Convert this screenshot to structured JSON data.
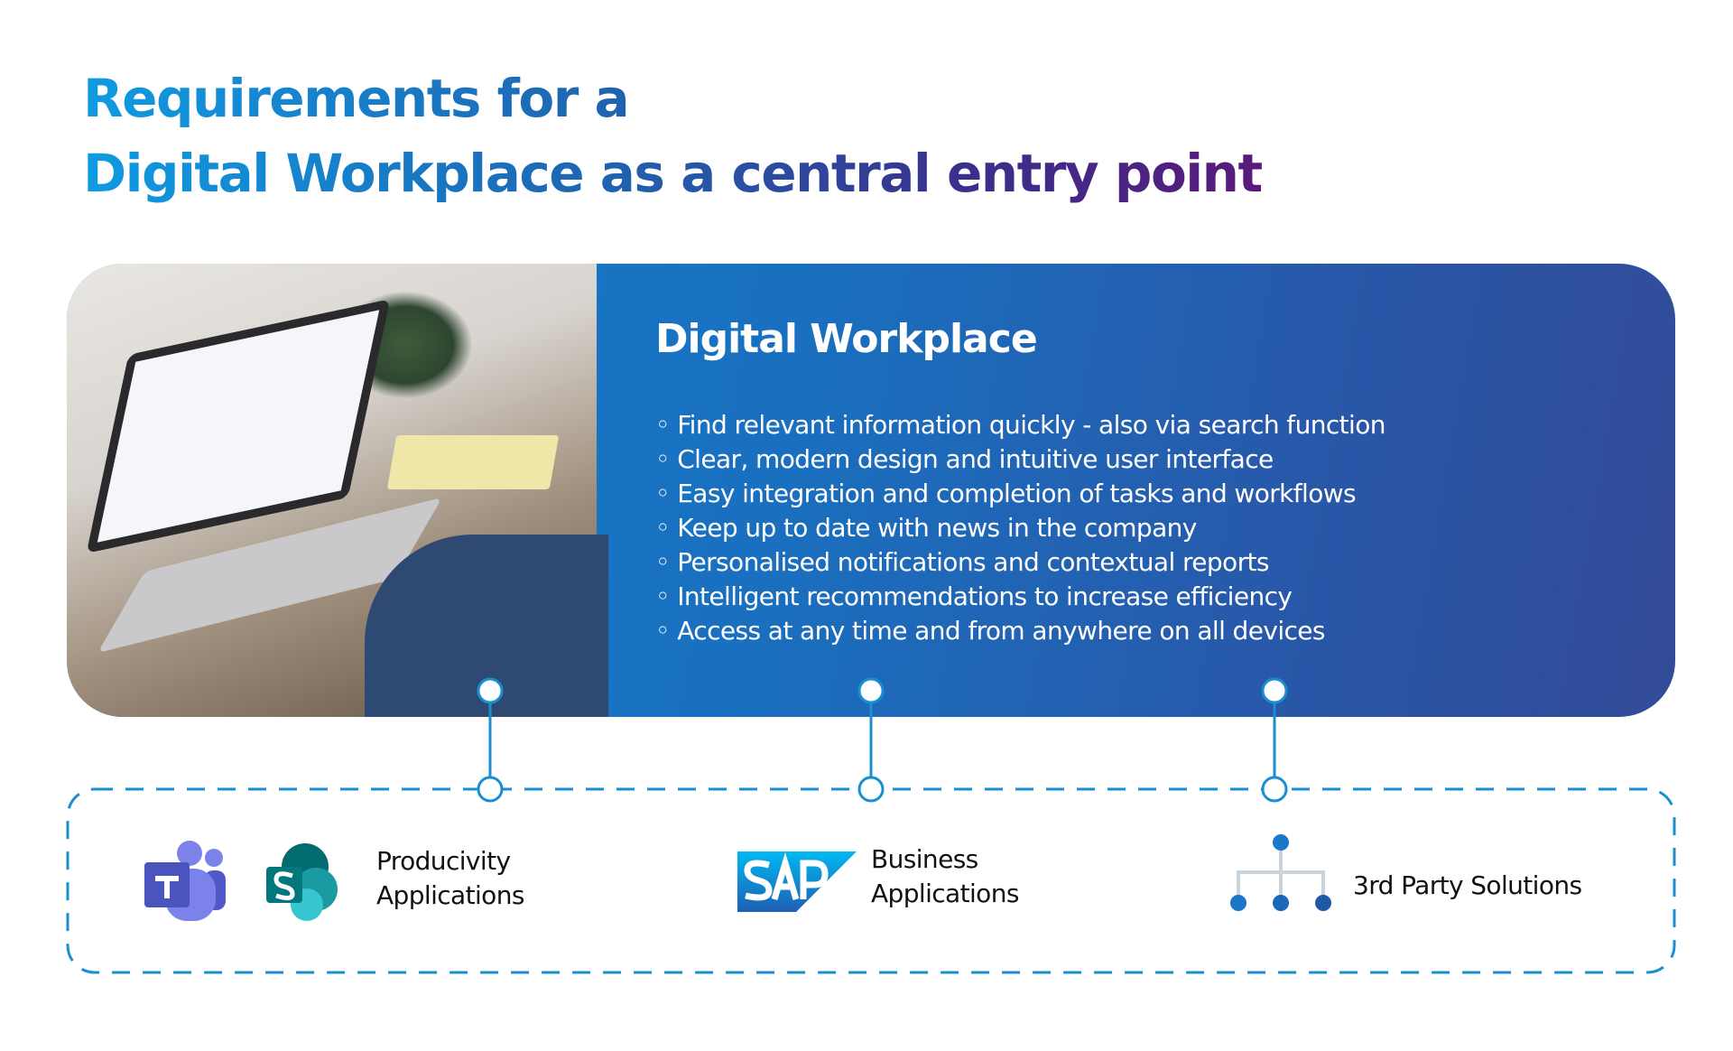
{
  "page": {
    "title_line1": "Requirements for a",
    "title_line2": "Digital Workplace as a central entry point"
  },
  "banner": {
    "heading": "Digital Workplace",
    "bullets": [
      "Find relevant information quickly - also via search function",
      "Clear, modern design and intuitive user interface",
      "Easy integration and completion of tasks and workflows",
      "Keep up to date with news in the company",
      "Personalised notifications and contextual reports",
      "Intelligent recommendations to increase efficiency",
      "Access at any time and from anywhere on all devices"
    ]
  },
  "applications": [
    {
      "label_line1": "Producivity",
      "label_line2": "Applications",
      "icons": [
        "microsoft-teams-icon",
        "sharepoint-icon"
      ]
    },
    {
      "label_line1": "Business",
      "label_line2": "Applications",
      "icons": [
        "sap-logo"
      ],
      "logo_text": "SAP"
    },
    {
      "label": "3rd Party Solutions",
      "icons": [
        "org-hierarchy-icon"
      ]
    }
  ],
  "colors": {
    "accent": "#1a8fd0",
    "banner_start": "#1380ce",
    "banner_end": "#334b98",
    "title_end": "#5a1a7a"
  }
}
